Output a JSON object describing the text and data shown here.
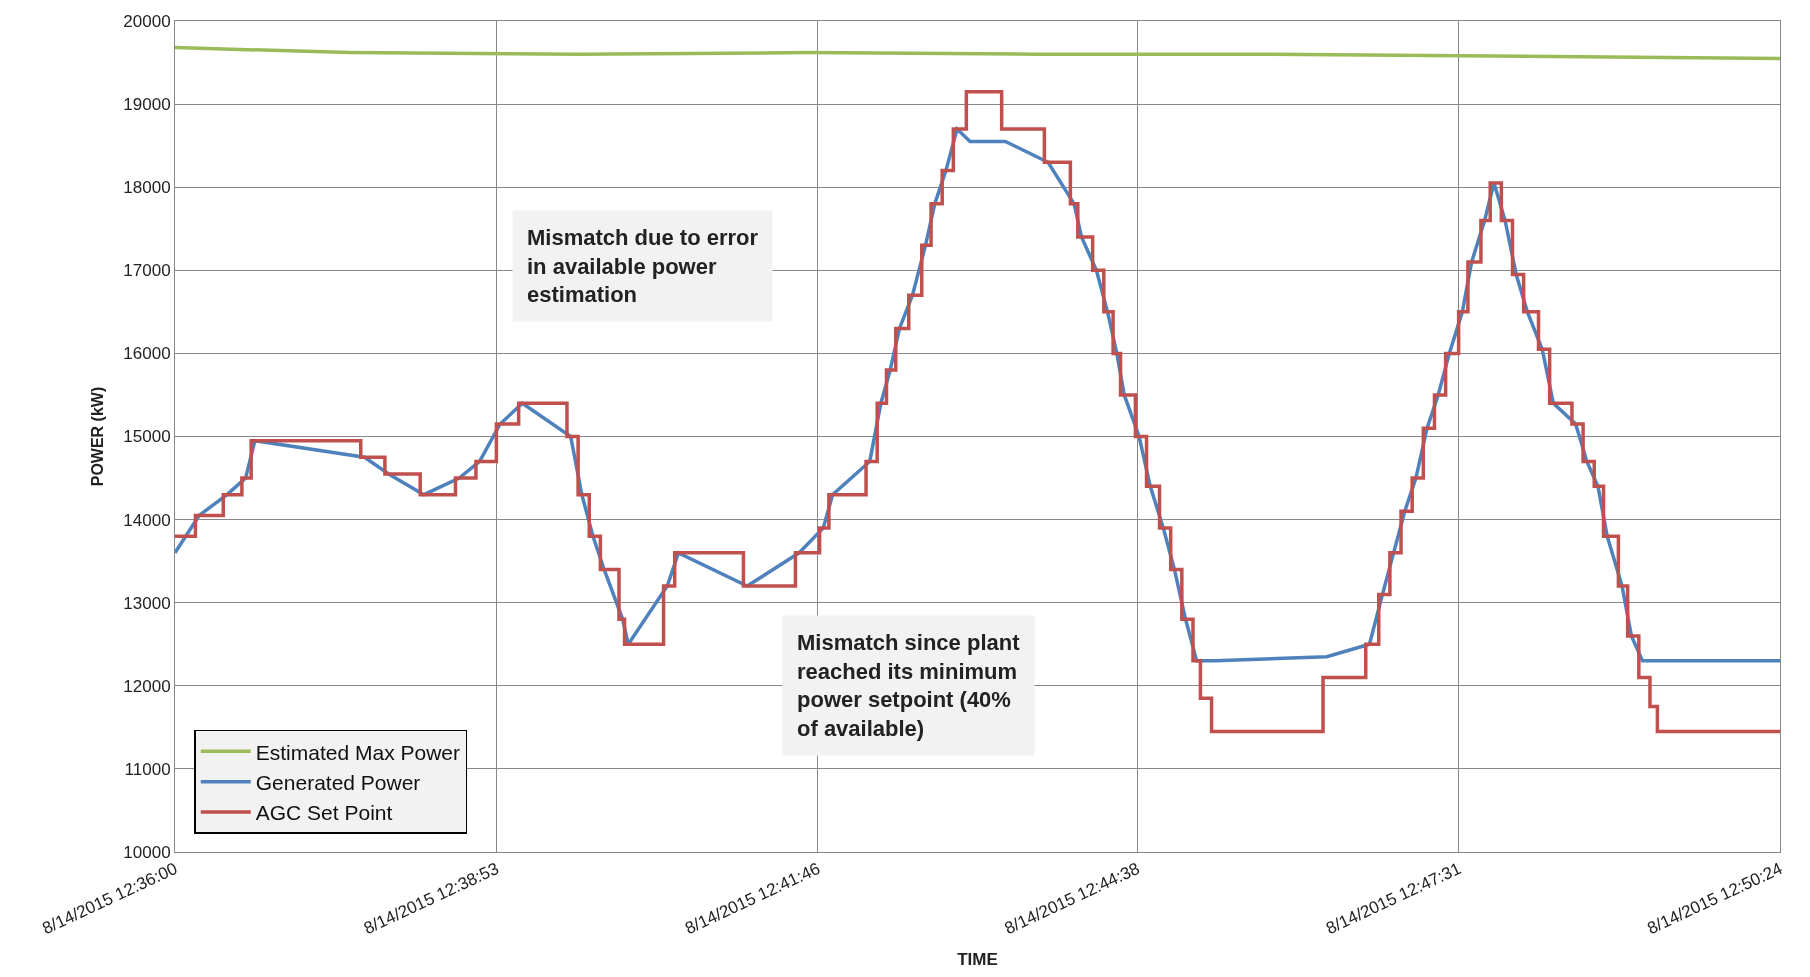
{
  "chart_data": {
    "type": "line",
    "xlabel": "TIME",
    "ylabel": "POWER (kW)",
    "xlim": [
      "2015-08-14T12:36:00",
      "2015-08-14T12:50:24"
    ],
    "xticks": [
      {
        "value": "2015-08-14T12:36:00",
        "label": "8/14/2015 12:36:00"
      },
      {
        "value": "2015-08-14T12:38:53",
        "label": "8/14/2015 12:38:53"
      },
      {
        "value": "2015-08-14T12:41:46",
        "label": "8/14/2015 12:41:46"
      },
      {
        "value": "2015-08-14T12:44:38",
        "label": "8/14/2015 12:44:38"
      },
      {
        "value": "2015-08-14T12:47:31",
        "label": "8/14/2015 12:47:31"
      },
      {
        "value": "2015-08-14T12:50:24",
        "label": "8/14/2015 12:50:24"
      }
    ],
    "ylim": [
      10000,
      20000
    ],
    "yticks": [
      10000,
      11000,
      12000,
      13000,
      14000,
      15000,
      16000,
      17000,
      18000,
      19000,
      20000
    ],
    "grid": true,
    "legend": "bottom left",
    "marker": "none",
    "line_style": "solid",
    "annotations": [
      "Mismatch due to error\nin available power\nestimation",
      "Mismatch since plant\nreached its minimum\npower setpoint (40%\nof available)"
    ],
    "series": [
      {
        "name": "Estimated Max Power",
        "color": "#9bbb59",
        "x": [
          "2015-08-14T12:36:00",
          "2015-08-14T12:37:34",
          "2015-08-14T12:39:37",
          "2015-08-14T12:41:40",
          "2015-08-14T12:43:43",
          "2015-08-14T12:45:46",
          "2015-08-14T12:47:49",
          "2015-08-14T12:50:24"
        ],
        "values": [
          19680,
          19620,
          19600,
          19620,
          19600,
          19600,
          19580,
          19550
        ]
      },
      {
        "name": "Generated Power",
        "color": "#4f81bd",
        "x": [
          "2015-08-14T12:36:00",
          "2015-08-14T12:36:13",
          "2015-08-14T12:36:28",
          "2015-08-14T12:36:38",
          "2015-08-14T12:36:43",
          "2015-08-14T12:37:42",
          "2015-08-14T12:37:55",
          "2015-08-14T12:38:14",
          "2015-08-14T12:38:33",
          "2015-08-14T12:38:44",
          "2015-08-14T12:38:55",
          "2015-08-14T12:39:07",
          "2015-08-14T12:39:33",
          "2015-08-14T12:39:39",
          "2015-08-14T12:39:45",
          "2015-08-14T12:39:51",
          "2015-08-14T12:40:01",
          "2015-08-14T12:40:04",
          "2015-08-14T12:40:25",
          "2015-08-14T12:40:31",
          "2015-08-14T12:41:08",
          "2015-08-14T12:41:36",
          "2015-08-14T12:41:49",
          "2015-08-14T12:41:54",
          "2015-08-14T12:42:14",
          "2015-08-14T12:42:20",
          "2015-08-14T12:42:25",
          "2015-08-14T12:42:30",
          "2015-08-14T12:42:37",
          "2015-08-14T12:42:44",
          "2015-08-14T12:42:49",
          "2015-08-14T12:42:55",
          "2015-08-14T12:43:01",
          "2015-08-14T12:43:08",
          "2015-08-14T12:43:27",
          "2015-08-14T12:43:50",
          "2015-08-14T12:44:04",
          "2015-08-14T12:44:08",
          "2015-08-14T12:44:16",
          "2015-08-14T12:44:22",
          "2015-08-14T12:44:27",
          "2015-08-14T12:44:31",
          "2015-08-14T12:44:39",
          "2015-08-14T12:44:45",
          "2015-08-14T12:44:52",
          "2015-08-14T12:44:58",
          "2015-08-14T12:45:04",
          "2015-08-14T12:45:10",
          "2015-08-14T12:45:14",
          "2015-08-14T12:45:20",
          "2015-08-14T12:46:20",
          "2015-08-14T12:46:43",
          "2015-08-14T12:46:50",
          "2015-08-14T12:46:56",
          "2015-08-14T12:47:02",
          "2015-08-14T12:47:08",
          "2015-08-14T12:47:14",
          "2015-08-14T12:47:20",
          "2015-08-14T12:47:26",
          "2015-08-14T12:47:33",
          "2015-08-14T12:47:38",
          "2015-08-14T12:47:45",
          "2015-08-14T12:47:50",
          "2015-08-14T12:47:56",
          "2015-08-14T12:48:02",
          "2015-08-14T12:48:08",
          "2015-08-14T12:48:16",
          "2015-08-14T12:48:22",
          "2015-08-14T12:48:34",
          "2015-08-14T12:48:40",
          "2015-08-14T12:48:46",
          "2015-08-14T12:48:51",
          "2015-08-14T12:48:59",
          "2015-08-14T12:49:04",
          "2015-08-14T12:49:10",
          "2015-08-14T12:49:16",
          "2015-08-14T12:49:20",
          "2015-08-14T12:50:24"
        ],
        "values": [
          13600,
          14050,
          14300,
          14500,
          14950,
          14750,
          14550,
          14300,
          14500,
          14700,
          15150,
          15400,
          15000,
          14300,
          13800,
          13400,
          12800,
          12500,
          13200,
          13600,
          13200,
          13600,
          13900,
          14300,
          14700,
          15400,
          15800,
          16300,
          16700,
          17300,
          17800,
          18200,
          18700,
          18550,
          18550,
          18300,
          17800,
          17400,
          17000,
          16500,
          16000,
          15500,
          15000,
          14400,
          13900,
          13400,
          12800,
          12300,
          12300,
          12300,
          12350,
          12500,
          13100,
          13600,
          14100,
          14500,
          15100,
          15500,
          16000,
          16500,
          17100,
          17600,
          18050,
          17600,
          16950,
          16500,
          16050,
          15400,
          15150,
          14700,
          14400,
          13800,
          13200,
          12600,
          12300,
          12300,
          12300,
          12300
        ]
      },
      {
        "name": "AGC Set Point",
        "color": "#c0504d",
        "type": "step",
        "x": [
          "2015-08-14T12:36:00",
          "2015-08-14T12:36:11",
          "2015-08-14T12:36:26",
          "2015-08-14T12:36:36",
          "2015-08-14T12:36:41",
          "2015-08-14T12:37:40",
          "2015-08-14T12:37:53",
          "2015-08-14T12:38:12",
          "2015-08-14T12:38:31",
          "2015-08-14T12:38:42",
          "2015-08-14T12:38:53",
          "2015-08-14T12:39:05",
          "2015-08-14T12:39:31",
          "2015-08-14T12:39:37",
          "2015-08-14T12:39:43",
          "2015-08-14T12:39:49",
          "2015-08-14T12:39:59",
          "2015-08-14T12:40:02",
          "2015-08-14T12:40:23",
          "2015-08-14T12:40:29",
          "2015-08-14T12:41:06",
          "2015-08-14T12:41:34",
          "2015-08-14T12:41:47",
          "2015-08-14T12:41:52",
          "2015-08-14T12:42:12",
          "2015-08-14T12:42:18",
          "2015-08-14T12:42:23",
          "2015-08-14T12:42:28",
          "2015-08-14T12:42:35",
          "2015-08-14T12:42:42",
          "2015-08-14T12:42:47",
          "2015-08-14T12:42:53",
          "2015-08-14T12:42:59",
          "2015-08-14T12:43:06",
          "2015-08-14T12:43:25",
          "2015-08-14T12:43:48",
          "2015-08-14T12:44:02",
          "2015-08-14T12:44:06",
          "2015-08-14T12:44:14",
          "2015-08-14T12:44:20",
          "2015-08-14T12:44:25",
          "2015-08-14T12:44:29",
          "2015-08-14T12:44:37",
          "2015-08-14T12:44:43",
          "2015-08-14T12:44:50",
          "2015-08-14T12:44:56",
          "2015-08-14T12:45:02",
          "2015-08-14T12:45:08",
          "2015-08-14T12:45:12",
          "2015-08-14T12:45:18",
          "2015-08-14T12:46:18",
          "2015-08-14T12:46:41",
          "2015-08-14T12:46:48",
          "2015-08-14T12:46:54",
          "2015-08-14T12:47:00",
          "2015-08-14T12:47:06",
          "2015-08-14T12:47:12",
          "2015-08-14T12:47:18",
          "2015-08-14T12:47:24",
          "2015-08-14T12:47:31",
          "2015-08-14T12:47:36",
          "2015-08-14T12:47:43",
          "2015-08-14T12:47:48",
          "2015-08-14T12:47:54",
          "2015-08-14T12:48:00",
          "2015-08-14T12:48:06",
          "2015-08-14T12:48:14",
          "2015-08-14T12:48:20",
          "2015-08-14T12:48:32",
          "2015-08-14T12:48:38",
          "2015-08-14T12:48:44",
          "2015-08-14T12:48:49",
          "2015-08-14T12:48:57",
          "2015-08-14T12:49:02",
          "2015-08-14T12:49:08",
          "2015-08-14T12:49:14",
          "2015-08-14T12:49:18",
          "2015-08-14T12:50:24"
        ],
        "values": [
          13800,
          14050,
          14300,
          14500,
          14950,
          14750,
          14550,
          14300,
          14500,
          14700,
          15150,
          15400,
          15000,
          14300,
          13800,
          13400,
          12800,
          12500,
          13200,
          13600,
          13200,
          13600,
          13900,
          14300,
          14700,
          15400,
          15800,
          16300,
          16700,
          17300,
          17800,
          18200,
          18700,
          19150,
          18700,
          18300,
          17800,
          17400,
          17000,
          16500,
          16000,
          15500,
          15000,
          14400,
          13900,
          13400,
          12800,
          12300,
          11850,
          11450,
          12100,
          12500,
          13100,
          13600,
          14100,
          14500,
          15100,
          15500,
          16000,
          16500,
          17100,
          17600,
          18050,
          17600,
          16950,
          16500,
          16050,
          15400,
          15150,
          14700,
          14400,
          13800,
          13200,
          12600,
          12100,
          11750,
          11450,
          11450
        ]
      }
    ]
  }
}
